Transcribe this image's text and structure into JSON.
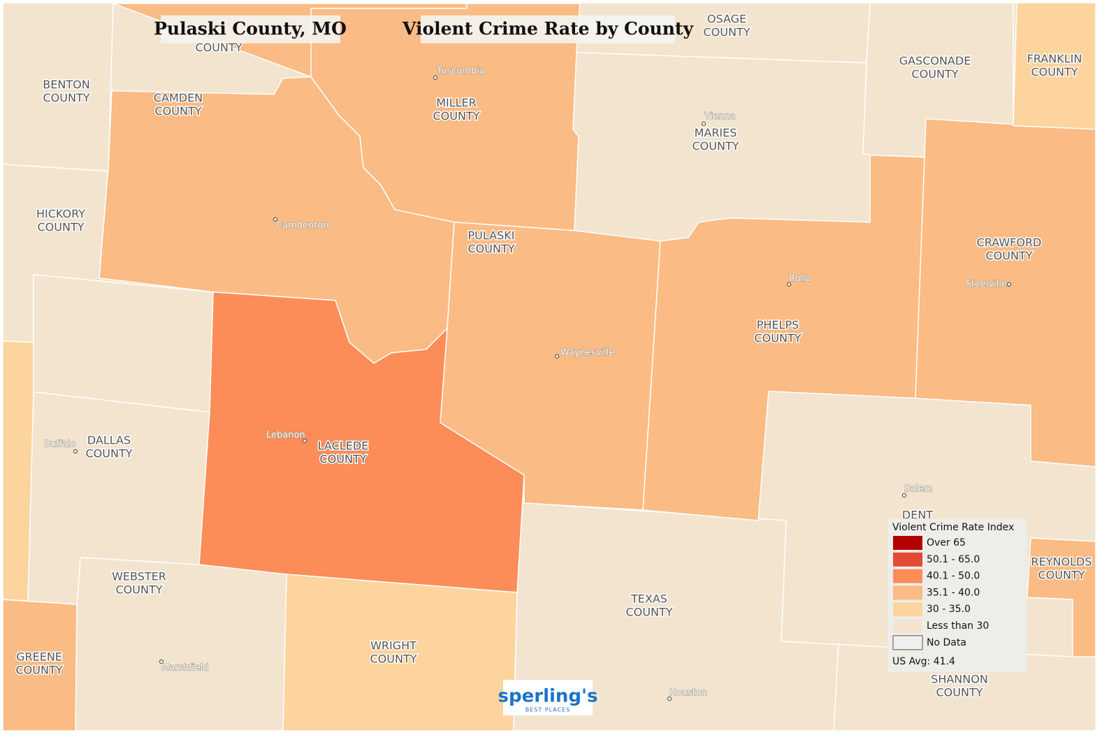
{
  "titles": {
    "place": "Pulaski County, MO",
    "map": "Violent Crime Rate by County"
  },
  "counties": [
    {
      "lines": [
        "COUNTY"
      ]
    },
    {
      "lines": [
        "BENTON",
        "COUNTY"
      ]
    },
    {
      "lines": [
        "CAMDEN",
        "COUNTY"
      ]
    },
    {
      "lines": [
        "MILLER",
        "COUNTY"
      ]
    },
    {
      "lines": [
        "OSAGE",
        "COUNTY"
      ]
    },
    {
      "lines": [
        "GASCONADE",
        "COUNTY"
      ]
    },
    {
      "lines": [
        "FRANKLIN",
        "COUNTY"
      ]
    },
    {
      "lines": [
        "MARIES",
        "COUNTY"
      ]
    },
    {
      "lines": [
        "HICKORY",
        "COUNTY"
      ]
    },
    {
      "lines": [
        "PULASKI",
        "COUNTY"
      ]
    },
    {
      "lines": [
        "CRAWFORD",
        "COUNTY"
      ]
    },
    {
      "lines": [
        "PHELPS",
        "COUNTY"
      ]
    },
    {
      "lines": [
        "DALLAS",
        "COUNTY"
      ]
    },
    {
      "lines": [
        "LACLEDE",
        "COUNTY"
      ]
    },
    {
      "lines": [
        "DENT"
      ]
    },
    {
      "lines": [
        "WEBSTER",
        "COUNTY"
      ]
    },
    {
      "lines": [
        "TEXAS",
        "COUNTY"
      ]
    },
    {
      "lines": [
        "REYNOLDS",
        "COUNTY"
      ]
    },
    {
      "lines": [
        "GREENE",
        "COUNTY"
      ]
    },
    {
      "lines": [
        "WRIGHT",
        "COUNTY"
      ]
    },
    {
      "lines": [
        "SHANNON",
        "COUNTY"
      ]
    }
  ],
  "cities": [
    "Tuscumbia",
    "Vienna",
    "Camdenton",
    "Rolla",
    "Steelville",
    "Waynesville",
    "Buffalo",
    "Lebanon",
    "Salem",
    "Marshfield",
    "Houston"
  ],
  "legend": {
    "title": "Violent Crime Rate Index",
    "items": [
      {
        "label": "Over 65",
        "color": "#b30000"
      },
      {
        "label": "50.1 - 65.0",
        "color": "#e34a33"
      },
      {
        "label": "40.1 - 50.0",
        "color": "#fc8d59"
      },
      {
        "label": "35.1 - 40.0",
        "color": "#fbbb84"
      },
      {
        "label": "30 - 35.0",
        "color": "#fdd49e"
      },
      {
        "label": "Less than 30",
        "color": "#f2e4cf"
      },
      {
        "label": "No Data",
        "color": "#f0f0f0"
      }
    ],
    "note": "US Avg: 41.4"
  },
  "logo": {
    "name": "sperling's",
    "tagline": "BEST PLACES"
  }
}
